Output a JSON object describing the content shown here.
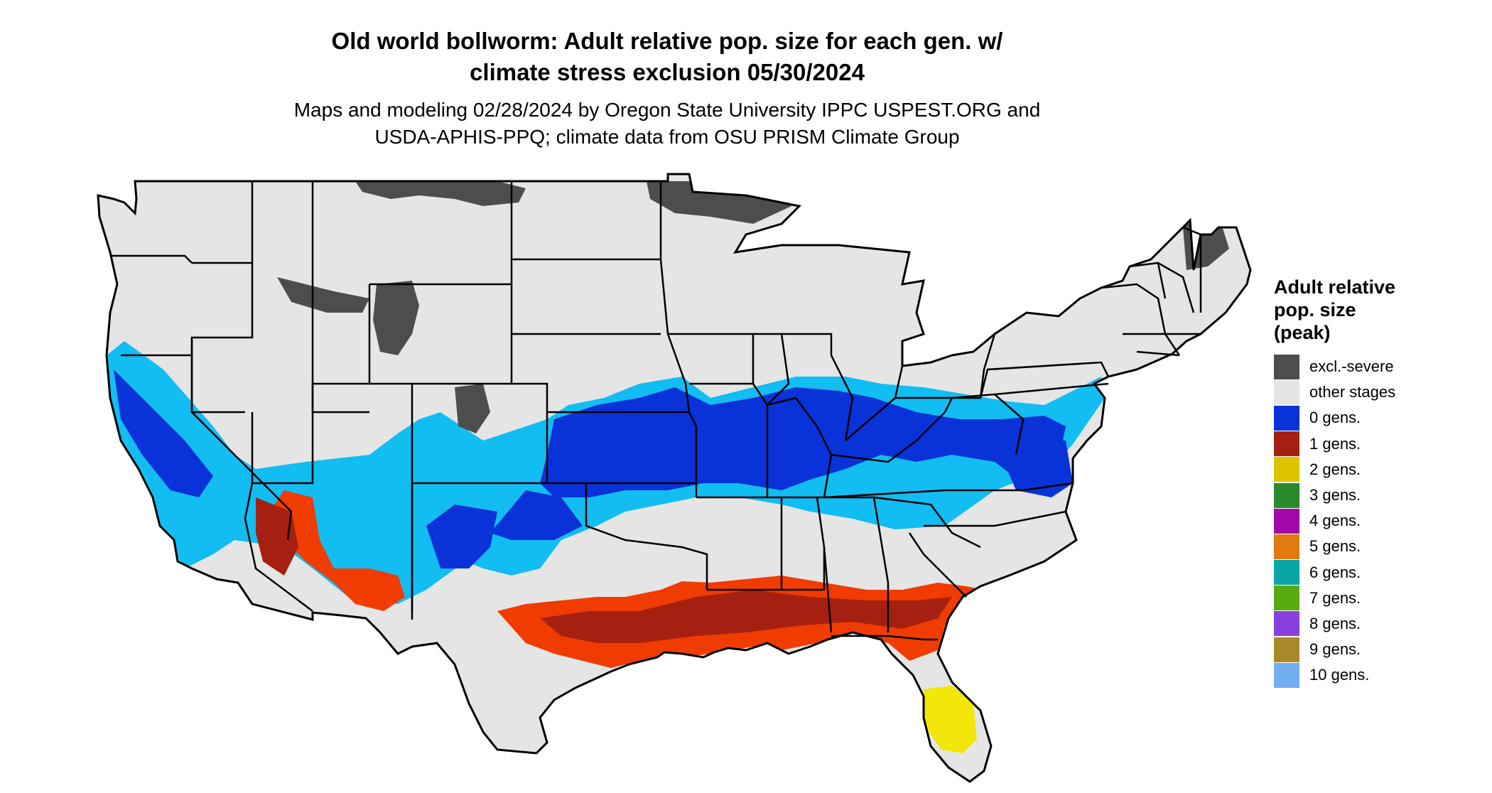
{
  "title": {
    "line1": "Old world bollworm: Adult relative pop. size for each gen. w/",
    "line2": "climate stress exclusion 05/30/2024"
  },
  "subtitle": {
    "line1": "Maps and modeling 02/28/2024 by Oregon State University IPPC USPEST.ORG and",
    "line2": "USDA-APHIS-PPQ; climate data from OSU PRISM Climate Group"
  },
  "legend": {
    "title_lines": [
      "Adult relative",
      "pop. size",
      "(peak)"
    ],
    "items": [
      {
        "label": "excl.-severe",
        "color": "#4d4d4d"
      },
      {
        "label": "other stages",
        "color": "#e5e5e5"
      },
      {
        "label": "0 gens.",
        "color": "#0a32d9"
      },
      {
        "label": "1 gens.",
        "color": "#a52010"
      },
      {
        "label": "2 gens.",
        "color": "#dcc500"
      },
      {
        "label": "3 gens.",
        "color": "#2a8a2a"
      },
      {
        "label": "4 gens.",
        "color": "#a10aa8"
      },
      {
        "label": "5 gens.",
        "color": "#e07a10"
      },
      {
        "label": "6 gens.",
        "color": "#0aa6a6"
      },
      {
        "label": "7 gens.",
        "color": "#58aa10"
      },
      {
        "label": "8 gens.",
        "color": "#8a40e0"
      },
      {
        "label": "9 gens.",
        "color": "#a8892a"
      },
      {
        "label": "10 gens.",
        "color": "#70aef0"
      }
    ]
  },
  "map_colors": {
    "land": "#e5e5e5",
    "border": "#000000",
    "light_blue": "#12bdf2",
    "blue": "#0a32d9",
    "red_orange": "#f03c00",
    "dark_red": "#a52010",
    "yellow": "#f2e60a",
    "dark_gray": "#4d4d4d"
  }
}
